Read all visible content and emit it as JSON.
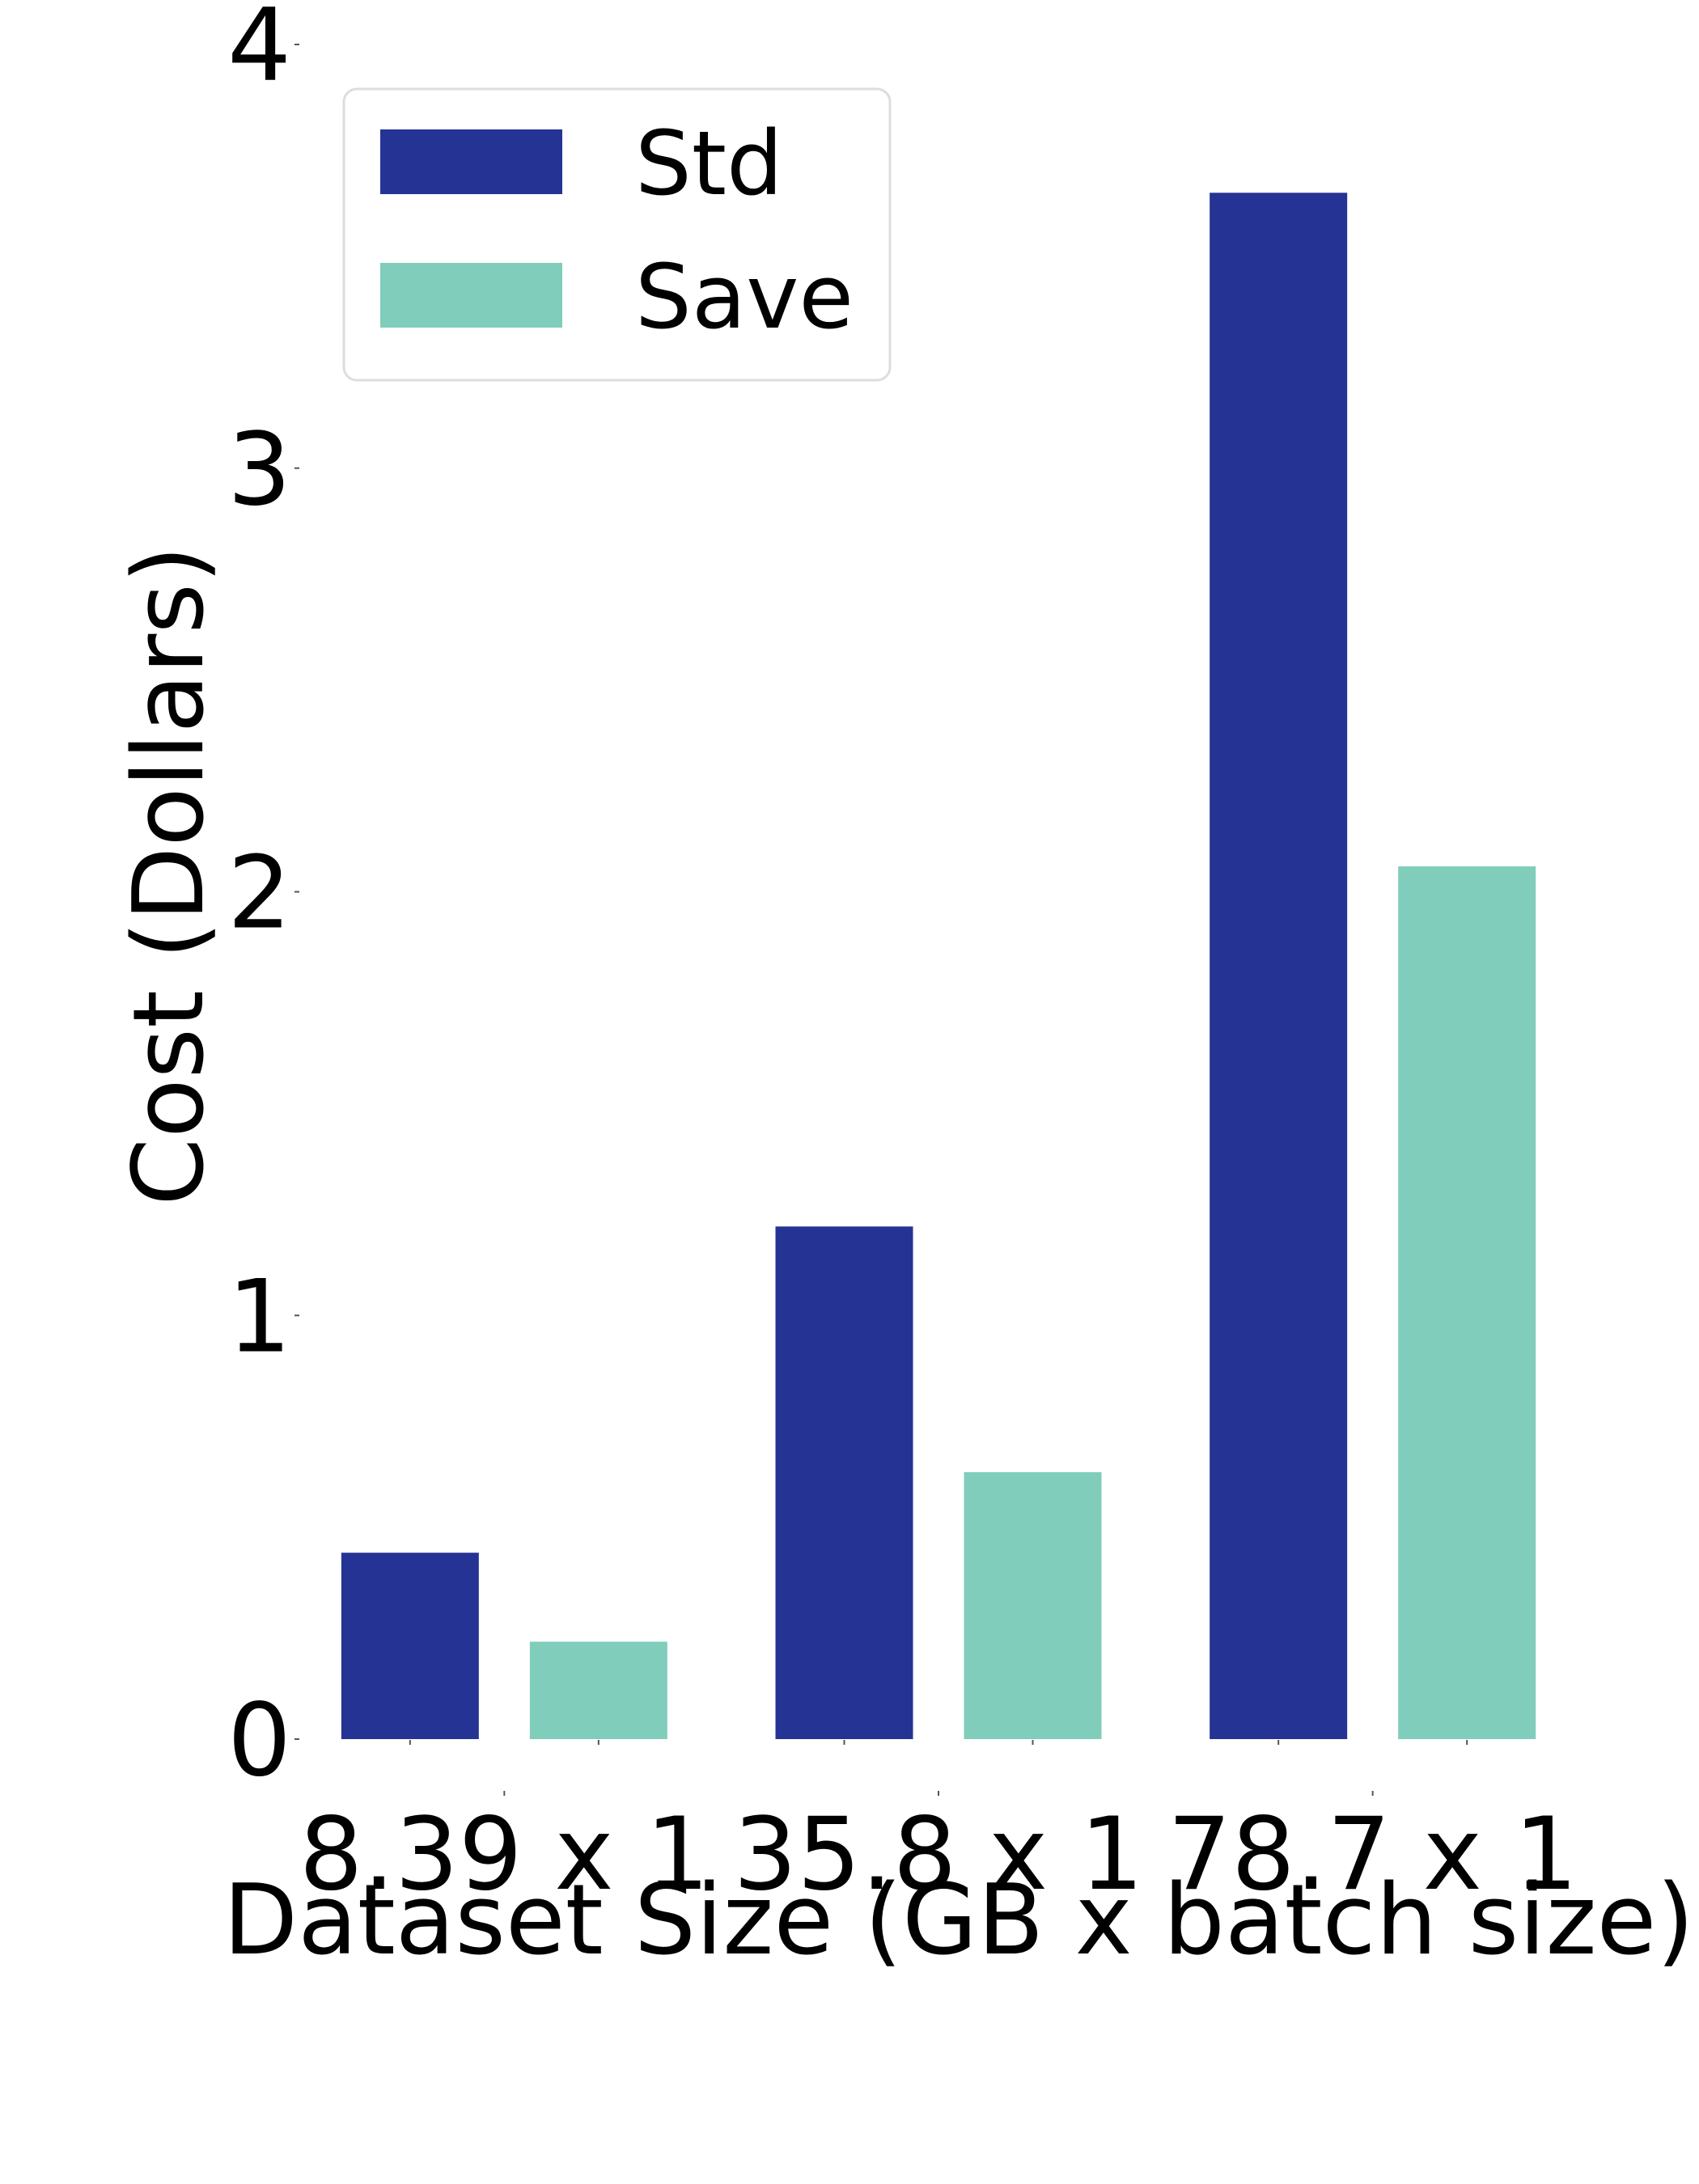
{
  "chart_data": {
    "type": "bar",
    "categories": [
      "8.39 x 1",
      "35.8 x 1",
      "78.7 x 1"
    ],
    "series": [
      {
        "name": "Std",
        "values": [
          0.44,
          1.21,
          3.65
        ],
        "color": "#253494"
      },
      {
        "name": "Save",
        "values": [
          0.23,
          0.63,
          2.06
        ],
        "color": "#80cdbb"
      }
    ],
    "xlabel": "Dataset Size (GB x batch size)",
    "ylabel": "Cost (Dollars)",
    "ylim": [
      0,
      4
    ],
    "yticks": [
      "0",
      "1",
      "2",
      "3",
      "4"
    ],
    "grid": false,
    "legend": {
      "placement": "top-left",
      "entries": [
        "Std",
        "Save"
      ]
    }
  }
}
